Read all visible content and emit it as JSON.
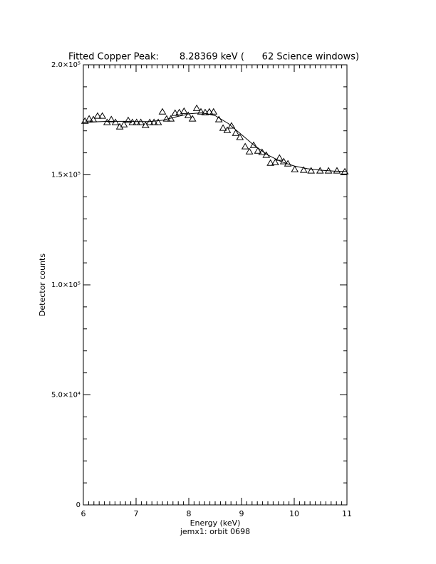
{
  "chart_data": {
    "type": "scatter",
    "title": "Fitted Copper Peak:       8.28369 keV (      62 Science windows)",
    "x_label": "Energy (keV)",
    "subtitle": "jemx1: orbit 0698",
    "y_label": "Detector counts",
    "xlim": [
      6,
      11
    ],
    "xticks": [
      6,
      7,
      8,
      9,
      10,
      11
    ],
    "x_minor_divisions": 10,
    "ylim": [
      0,
      200000
    ],
    "yticks": [
      0,
      {
        "value": 50000,
        "label": "5.0×10⁴"
      },
      {
        "value": 100000,
        "label": "1.0×10⁵"
      },
      {
        "value": 150000,
        "label": "1.5×10⁵"
      },
      {
        "value": 200000,
        "label": "2.0×10⁵"
      }
    ],
    "y_minor_divisions": 5,
    "series": [
      {
        "marker": "triangle",
        "color": "#000000",
        "x": [
          6.03,
          6.11,
          6.19,
          6.27,
          6.36,
          6.45,
          6.53,
          6.61,
          6.69,
          6.77,
          6.85,
          6.93,
          7.01,
          7.09,
          7.18,
          7.26,
          7.34,
          7.42,
          7.5,
          7.58,
          7.66,
          7.74,
          7.82,
          7.91,
          7.99,
          8.07,
          8.15,
          8.23,
          8.31,
          8.39,
          8.47,
          8.57,
          8.65,
          8.73,
          8.81,
          8.89,
          8.97,
          9.07,
          9.15,
          9.23,
          9.31,
          9.39,
          9.47,
          9.55,
          9.64,
          9.72,
          9.8,
          9.88,
          10.01,
          10.18,
          10.32,
          10.49,
          10.65,
          10.81,
          10.96
        ],
        "values": [
          174400,
          175400,
          175100,
          176700,
          176700,
          173800,
          175100,
          173800,
          171800,
          172800,
          174700,
          173800,
          173800,
          173800,
          172500,
          173800,
          173800,
          173800,
          178600,
          175400,
          175400,
          178000,
          178300,
          178900,
          177000,
          175400,
          180200,
          178600,
          178300,
          178600,
          178600,
          175100,
          171200,
          170200,
          172200,
          168900,
          167000,
          162800,
          160500,
          163400,
          160800,
          160200,
          158900,
          155300,
          155600,
          157600,
          156000,
          155000,
          152400,
          152100,
          151800,
          151800,
          151800,
          151800,
          151400
        ]
      },
      {
        "marker": "line",
        "color": "#000000",
        "x": [
          6.0,
          6.25,
          6.5,
          6.75,
          7.0,
          7.25,
          7.5,
          7.75,
          8.0,
          8.25,
          8.5,
          8.75,
          9.0,
          9.25,
          9.5,
          9.75,
          10.0,
          10.25,
          10.5,
          10.75,
          11.0
        ],
        "values": [
          173700,
          174100,
          174300,
          174300,
          174200,
          174200,
          174800,
          176300,
          177700,
          178200,
          176900,
          173300,
          168300,
          163200,
          159000,
          156000,
          154000,
          152800,
          152100,
          151700,
          151500
        ]
      }
    ]
  }
}
